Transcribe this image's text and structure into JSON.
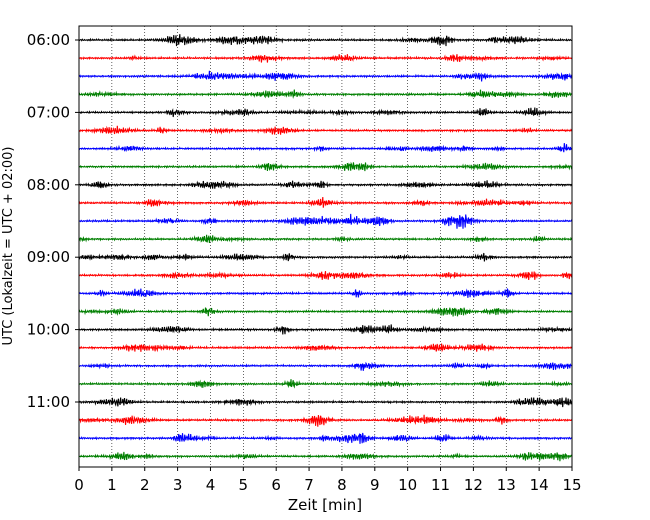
{
  "chart_data": {
    "type": "line",
    "title": "",
    "xlabel": "Zeit  [min]",
    "ylabel": "UTC (Lokalzeit = UTC + 02:00)",
    "xlim": [
      0,
      15
    ],
    "x_ticks": [
      0,
      1,
      2,
      3,
      4,
      5,
      6,
      7,
      8,
      9,
      10,
      11,
      12,
      13,
      14,
      15
    ],
    "x_tick_labels": [
      "0",
      "1",
      "2",
      "3",
      "4",
      "5",
      "6",
      "7",
      "8",
      "9",
      "10",
      "11",
      "12",
      "13",
      "14",
      "15"
    ],
    "y_tick_labels": [
      "06:00",
      "07:00",
      "08:00",
      "09:00",
      "10:00",
      "11:00"
    ],
    "y_tick_rows": [
      0,
      4,
      8,
      12,
      16,
      20
    ],
    "row_count": 24,
    "rows_per_hour": 4,
    "minutes_per_row": 15,
    "grid": "vertical dotted at each minute",
    "row_colors": [
      "#000000",
      "#ff0000",
      "#0000ff",
      "#007f00"
    ],
    "series_start": "06:00",
    "trace_style": "seismogram helicorder (noisy waveform, small amplitude)"
  }
}
